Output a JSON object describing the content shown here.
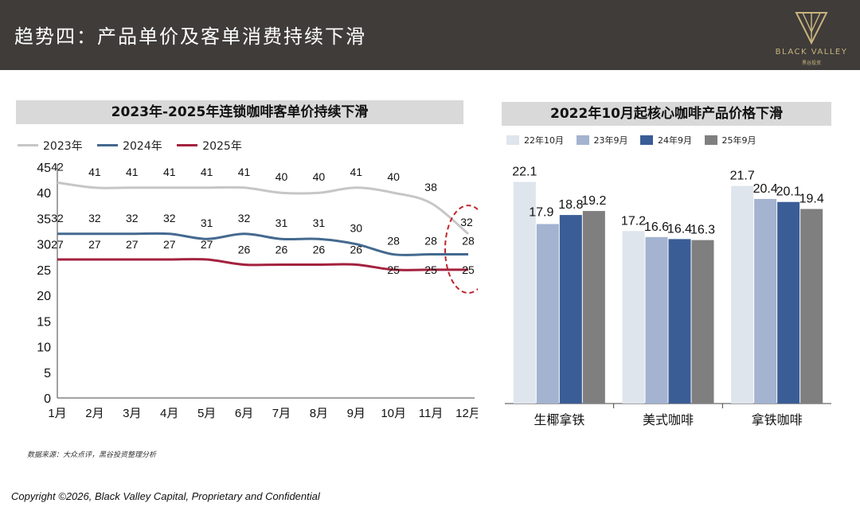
{
  "header": {
    "title": "趋势四：产品单价及客单消费持续下滑"
  },
  "logo": {
    "name": "BLACK VALLEY",
    "sub": "黑谷投资"
  },
  "left_panel": {
    "title": "2023年-2025年连锁咖啡客单价持续下滑"
  },
  "right_panel": {
    "title": "2022年10月起核心咖啡产品价格下滑"
  },
  "colors": {
    "s2023": "#c6c6c6",
    "s2024": "#44698f",
    "s2025": "#a3223e",
    "c1": "#dfe5ed",
    "c2": "#a3b3d0",
    "c3": "#3a5d96",
    "c4": "#7f7f7f"
  },
  "chart_data": [
    {
      "type": "line",
      "title": "2023年-2025年连锁咖啡客单价持续下滑",
      "categories": [
        "1月",
        "2月",
        "3月",
        "4月",
        "5月",
        "6月",
        "7月",
        "8月",
        "9月",
        "10月",
        "11月",
        "12月"
      ],
      "ylim": [
        0,
        45
      ],
      "yticks": [
        0,
        5,
        10,
        15,
        20,
        25,
        30,
        35,
        40,
        45
      ],
      "series": [
        {
          "name": "2023年",
          "values": [
            42,
            41,
            41,
            41,
            41,
            41,
            40,
            40,
            41,
            40,
            38,
            32
          ]
        },
        {
          "name": "2024年",
          "values": [
            32,
            32,
            32,
            32,
            31,
            32,
            31,
            31,
            30,
            28,
            28,
            28
          ]
        },
        {
          "name": "2025年",
          "values": [
            27,
            27,
            27,
            27,
            27,
            26,
            26,
            26,
            26,
            25,
            25,
            25
          ]
        }
      ],
      "legend_position": "top-left",
      "annotation": "dashed ellipse highlighting 12月"
    },
    {
      "type": "bar",
      "title": "2022年10月起核心咖啡产品价格下滑",
      "categories": [
        "生椰拿铁",
        "美式咖啡",
        "拿铁咖啡"
      ],
      "ylim": [
        0,
        25
      ],
      "series": [
        {
          "name": "22年10月",
          "values": [
            22.1,
            17.2,
            21.7
          ]
        },
        {
          "name": "23年9月",
          "values": [
            17.9,
            16.6,
            20.4
          ]
        },
        {
          "name": "24年9月",
          "values": [
            18.8,
            16.4,
            20.1
          ]
        },
        {
          "name": "25年9月",
          "values": [
            19.2,
            16.3,
            19.4
          ]
        }
      ],
      "legend_position": "top"
    }
  ],
  "footer": {
    "source": "数据来源：大众点评，黑谷投资整理分析",
    "copyright": "Copyright ©2026, Black Valley Capital, Proprietary and Confidential"
  }
}
